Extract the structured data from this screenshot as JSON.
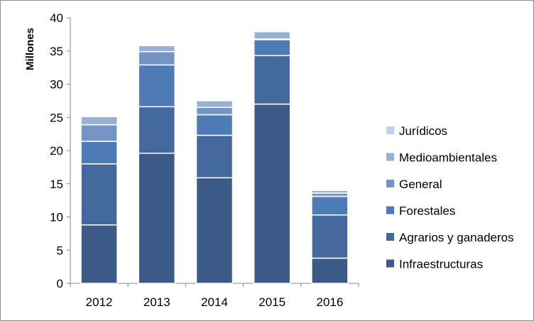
{
  "chart_data": {
    "type": "bar",
    "stacked": true,
    "categories": [
      "2012",
      "2013",
      "2014",
      "2015",
      "2016"
    ],
    "ylabel": "Millones",
    "ylim": [
      0,
      40
    ],
    "yticks": [
      0,
      5,
      10,
      15,
      20,
      25,
      30,
      35,
      40
    ],
    "grid": false,
    "legend_position": "right",
    "series": [
      {
        "name": "Infraestructuras",
        "color": "#3b5a87",
        "values": [
          8.8,
          19.6,
          15.9,
          27.0,
          3.8
        ]
      },
      {
        "name": "Agrarios y ganaderos",
        "color": "#44699c",
        "values": [
          9.2,
          7.0,
          6.4,
          7.3,
          6.5
        ]
      },
      {
        "name": "Forestales",
        "color": "#4e7ab6",
        "values": [
          3.4,
          6.3,
          3.1,
          2.4,
          2.8
        ]
      },
      {
        "name": "General",
        "color": "#7394c4",
        "values": [
          2.5,
          2.0,
          1.1,
          0.1,
          0.5
        ]
      },
      {
        "name": "Medioambientales",
        "color": "#99b0d6",
        "values": [
          1.2,
          0.9,
          1.0,
          1.1,
          0.4
        ]
      },
      {
        "name": "Jurídicos",
        "color": "#c2cfe7",
        "values": [
          0.0,
          0.0,
          0.0,
          0.0,
          0.0
        ]
      }
    ]
  }
}
